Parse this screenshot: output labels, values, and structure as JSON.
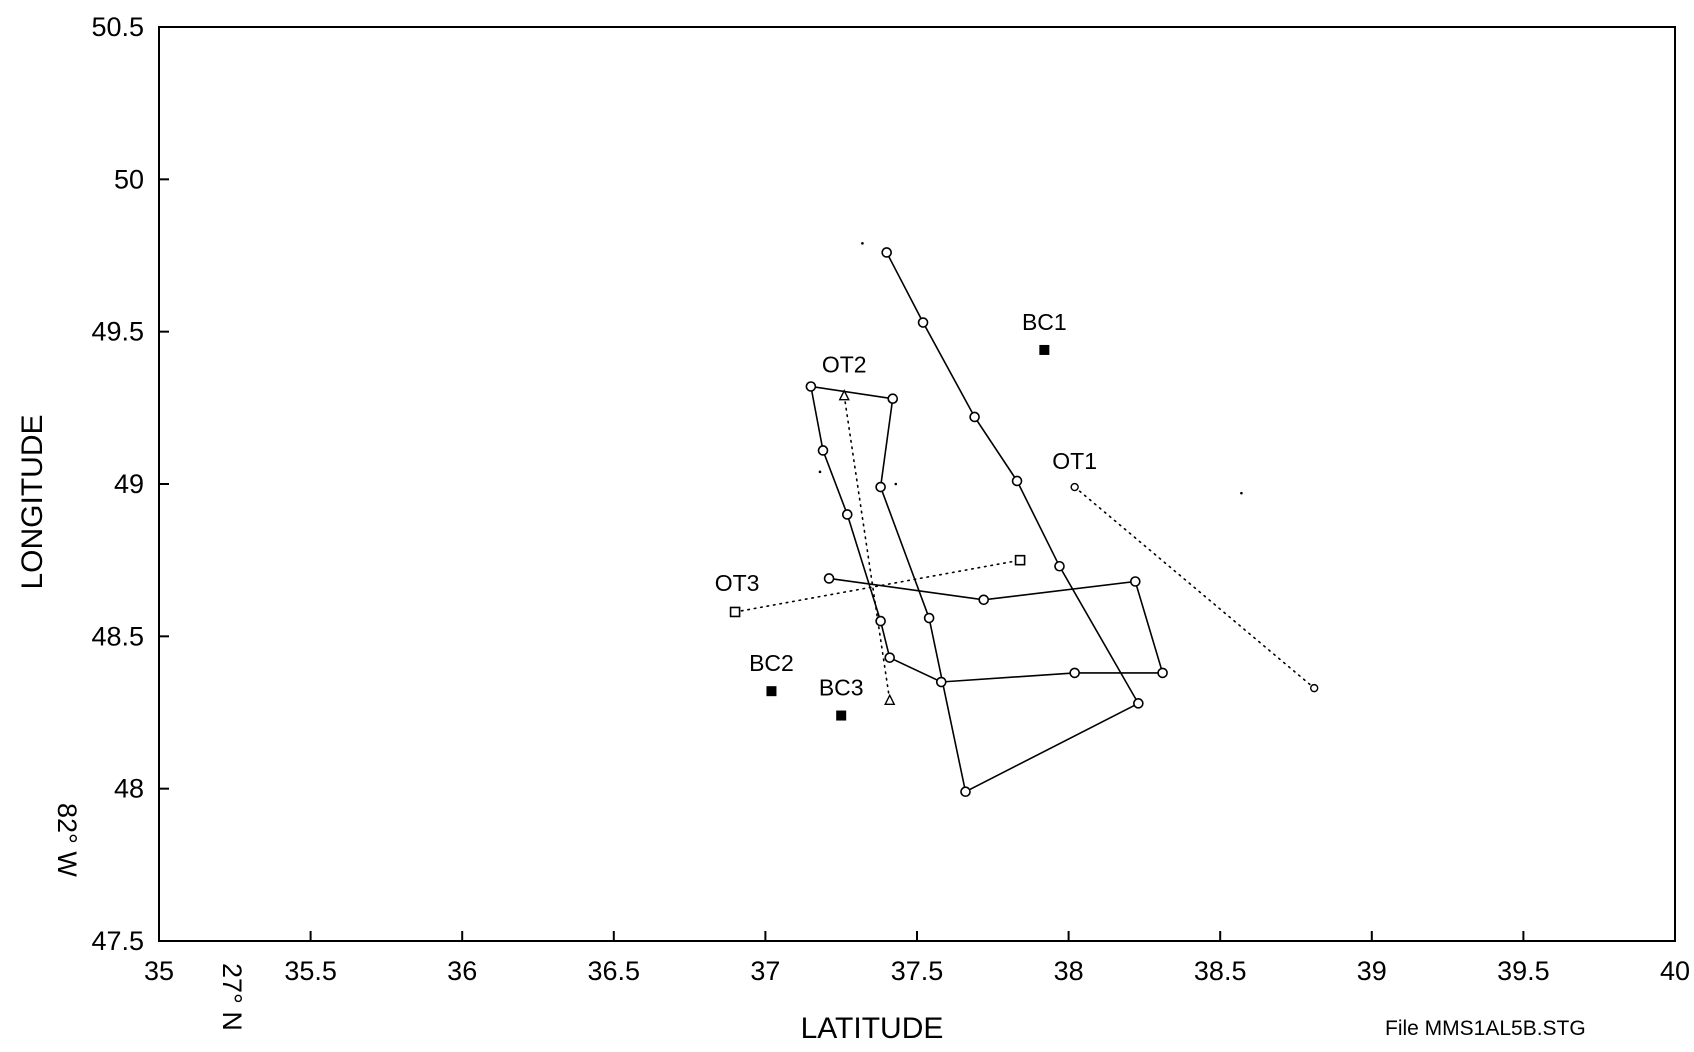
{
  "chart_data": {
    "type": "scatter",
    "title": "",
    "xlabel": "LATITUDE",
    "ylabel": "LONGITUDE",
    "x_coord_note": "27° N",
    "y_coord_note": "82° W",
    "footer": "File MMS1AL5B.STG",
    "xlim": [
      35,
      40
    ],
    "ylim": [
      47.5,
      50.5
    ],
    "x_ticks": [
      "35",
      "35.5",
      "36",
      "36.5",
      "37",
      "37.5",
      "38",
      "38.5",
      "39",
      "39.5",
      "40"
    ],
    "y_ticks": [
      "47.5",
      "48",
      "48.5",
      "49",
      "49.5",
      "50",
      "50.5"
    ],
    "grid": false,
    "legend": "none",
    "series": [
      {
        "marker": "circle",
        "line": "solid",
        "points": [
          [
            37.4,
            49.76
          ],
          [
            37.52,
            49.53
          ],
          [
            37.69,
            49.22
          ],
          [
            37.83,
            49.01
          ],
          [
            37.97,
            48.73
          ],
          [
            38.23,
            48.28
          ],
          [
            37.66,
            47.99
          ],
          [
            37.54,
            48.56
          ],
          [
            37.38,
            48.99
          ],
          [
            37.42,
            49.28
          ],
          [
            37.15,
            49.32
          ],
          [
            37.19,
            49.11
          ],
          [
            37.27,
            48.9
          ],
          [
            37.38,
            48.55
          ],
          [
            37.41,
            48.43
          ],
          [
            37.58,
            48.35
          ],
          [
            38.02,
            48.38
          ],
          [
            38.31,
            48.38
          ],
          [
            38.22,
            48.68
          ],
          [
            37.72,
            48.62
          ],
          [
            37.21,
            48.69
          ]
        ]
      },
      {
        "name": "OT1",
        "marker": "circle-small",
        "line": "dotted",
        "points": [
          [
            38.02,
            48.99
          ],
          [
            38.81,
            48.33
          ]
        ]
      },
      {
        "name": "OT2",
        "marker": "triangle",
        "line": "dotted",
        "points": [
          [
            37.26,
            49.29
          ],
          [
            37.41,
            48.29
          ]
        ]
      },
      {
        "name": "OT3",
        "marker": "square-open",
        "line": "dotted",
        "points": [
          [
            36.9,
            48.58
          ],
          [
            37.84,
            48.75
          ]
        ]
      },
      {
        "marker": "square-filled",
        "line": "none",
        "points": [
          {
            "name": "BC1",
            "x": 37.92,
            "y": 49.44
          },
          {
            "name": "BC2",
            "x": 37.02,
            "y": 48.32
          },
          {
            "name": "BC3",
            "x": 37.25,
            "y": 48.24
          }
        ]
      }
    ]
  }
}
